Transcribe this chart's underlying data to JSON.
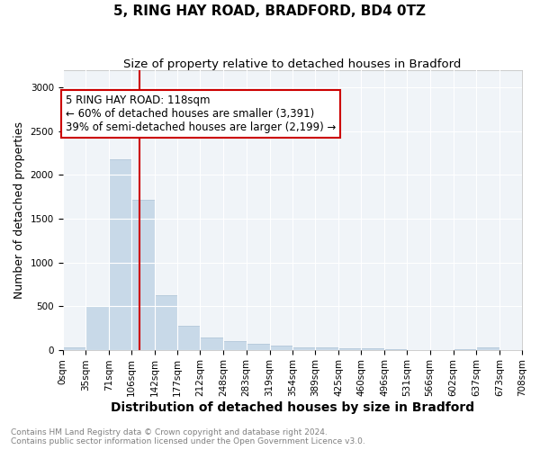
{
  "title": "5, RING HAY ROAD, BRADFORD, BD4 0TZ",
  "subtitle": "Size of property relative to detached houses in Bradford",
  "xlabel": "Distribution of detached houses by size in Bradford",
  "ylabel": "Number of detached properties",
  "bin_labels": [
    "0sqm",
    "35sqm",
    "71sqm",
    "106sqm",
    "142sqm",
    "177sqm",
    "212sqm",
    "248sqm",
    "283sqm",
    "319sqm",
    "354sqm",
    "389sqm",
    "425sqm",
    "460sqm",
    "496sqm",
    "531sqm",
    "566sqm",
    "602sqm",
    "637sqm",
    "673sqm",
    "708sqm"
  ],
  "bin_edges": [
    0,
    35,
    71,
    106,
    142,
    177,
    212,
    248,
    283,
    319,
    354,
    389,
    425,
    460,
    496,
    531,
    566,
    602,
    637,
    673,
    708
  ],
  "bar_heights": [
    30,
    500,
    2175,
    1720,
    625,
    270,
    145,
    100,
    70,
    50,
    30,
    25,
    20,
    15,
    5,
    0,
    0,
    5,
    30,
    0,
    0
  ],
  "bar_color": "#c8d9e8",
  "bar_edgecolor": "#aac0d5",
  "property_size": 118,
  "red_line_color": "#cc0000",
  "annotation_text": "5 RING HAY ROAD: 118sqm\n← 60% of detached houses are smaller (3,391)\n39% of semi-detached houses are larger (2,199) →",
  "annotation_box_color": "#cc0000",
  "ylim": [
    0,
    3200
  ],
  "yticks": [
    0,
    500,
    1000,
    1500,
    2000,
    2500,
    3000
  ],
  "background_color": "#ffffff",
  "plot_bg_color": "#f0f4f8",
  "grid_color": "#ffffff",
  "footer_text": "Contains HM Land Registry data © Crown copyright and database right 2024.\nContains public sector information licensed under the Open Government Licence v3.0.",
  "title_fontsize": 11,
  "subtitle_fontsize": 9.5,
  "label_fontsize": 9,
  "tick_fontsize": 7.5,
  "footer_fontsize": 6.5
}
